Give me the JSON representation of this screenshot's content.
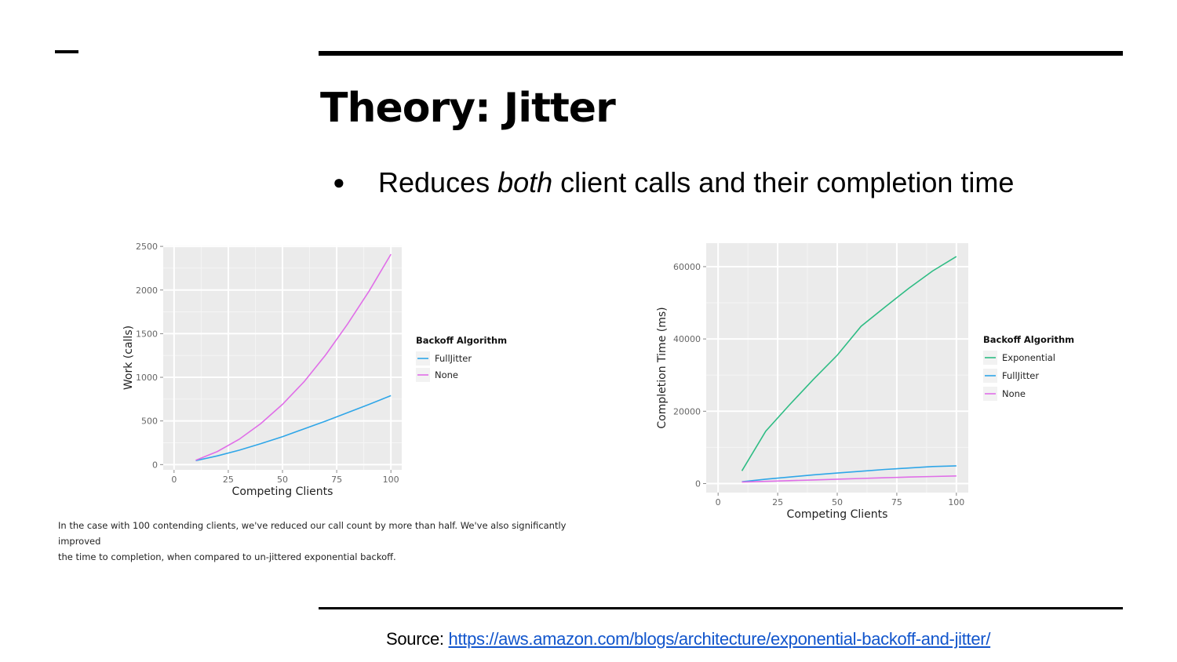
{
  "slide": {
    "title": "Theory: Jitter",
    "bullet": {
      "before": "Reduces ",
      "emphasis": "both",
      "after": " client calls and their completion time"
    },
    "caption_line1": "In the case with 100 contending clients, we've reduced our call count by more than half. We've also significantly improved",
    "caption_line2": "the time to completion, when compared to un-jittered exponential backoff.",
    "source_label": "Source: ",
    "source_link": "https://aws.amazon.com/blogs/architecture/exponential-backoff-and-jitter/"
  },
  "chart_data": [
    {
      "type": "line",
      "xlabel": "Competing Clients",
      "ylabel": "Work (calls)",
      "xlim": [
        -5,
        105
      ],
      "ylim": [
        -60,
        2510
      ],
      "xticks": [
        0,
        25,
        50,
        75,
        100
      ],
      "yticks": [
        0,
        500,
        1000,
        1500,
        2000,
        2500
      ],
      "grid": true,
      "background": "#ebebeb",
      "legend": {
        "title": "Backoff Algorithm",
        "position": "right"
      },
      "x": [
        10,
        20,
        30,
        40,
        50,
        60,
        70,
        80,
        90,
        100
      ],
      "series": [
        {
          "name": "FullJitter",
          "color": "#2fa6e8",
          "values": [
            45,
            100,
            165,
            240,
            320,
            410,
            500,
            595,
            690,
            790
          ]
        },
        {
          "name": "None",
          "color": "#e06ee8",
          "values": [
            50,
            150,
            290,
            470,
            690,
            950,
            1260,
            1610,
            1990,
            2410
          ]
        }
      ]
    },
    {
      "type": "line",
      "xlabel": "Competing Clients",
      "ylabel": "Completion Time (ms)",
      "xlim": [
        -5,
        105
      ],
      "ylim": [
        -2500,
        66500
      ],
      "xticks": [
        0,
        25,
        50,
        75,
        100
      ],
      "yticks": [
        0,
        20000,
        40000,
        60000
      ],
      "grid": true,
      "background": "#ebebeb",
      "legend": {
        "title": "Backoff Algorithm",
        "position": "right"
      },
      "x": [
        10,
        20,
        30,
        40,
        50,
        60,
        70,
        80,
        90,
        100
      ],
      "series": [
        {
          "name": "Exponential",
          "color": "#2ebc84",
          "values": [
            3500,
            14500,
            21800,
            28800,
            35500,
            43500,
            48800,
            54000,
            58800,
            62800
          ]
        },
        {
          "name": "FullJitter",
          "color": "#2fa6e8",
          "values": [
            500,
            1200,
            1800,
            2400,
            2900,
            3400,
            3900,
            4300,
            4700,
            4900
          ]
        },
        {
          "name": "None",
          "color": "#e06ee8",
          "values": [
            400,
            600,
            800,
            1000,
            1200,
            1400,
            1600,
            1800,
            1950,
            2100
          ]
        }
      ]
    }
  ]
}
